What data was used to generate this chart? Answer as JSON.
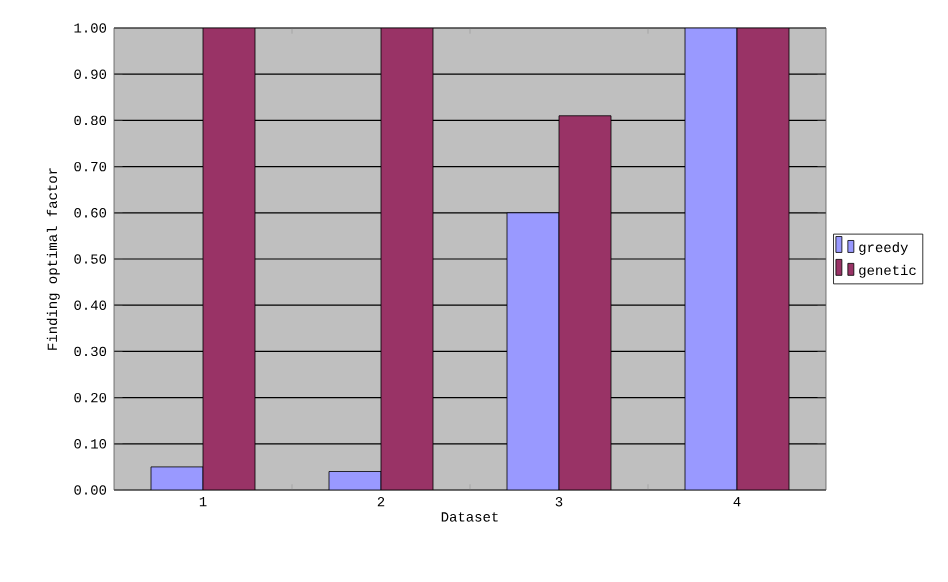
{
  "chart_data": {
    "type": "bar",
    "xlabel": "Dataset",
    "ylabel": "Finding optimal factor",
    "categories": [
      "1",
      "2",
      "3",
      "4"
    ],
    "series": [
      {
        "name": "greedy",
        "color": "#9999ff",
        "values": [
          0.05,
          0.04,
          0.6,
          1.0
        ]
      },
      {
        "name": "genetic",
        "color": "#993366",
        "values": [
          1.0,
          1.0,
          0.81,
          1.0
        ]
      }
    ],
    "ylim": [
      0,
      1
    ],
    "yticks": [
      {
        "value": 0,
        "label": "0.00"
      },
      {
        "value": 0.1,
        "label": "0.10"
      },
      {
        "value": 0.2,
        "label": "0.20"
      },
      {
        "value": 0.3,
        "label": "0.30"
      },
      {
        "value": 0.4,
        "label": "0.40"
      },
      {
        "value": 0.5,
        "label": "0.50"
      },
      {
        "value": 0.6,
        "label": "0.60"
      },
      {
        "value": 0.7,
        "label": "0.70"
      },
      {
        "value": 0.8,
        "label": "0.80"
      },
      {
        "value": 0.9,
        "label": "0.90"
      },
      {
        "value": 1,
        "label": "1.00"
      }
    ],
    "grid": "y",
    "legend": "right"
  }
}
